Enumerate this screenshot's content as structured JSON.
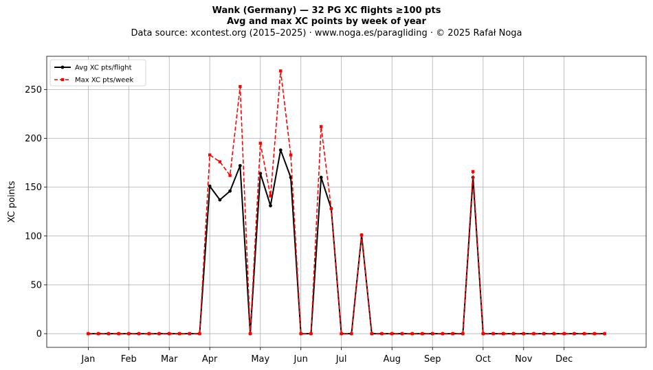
{
  "header": {
    "title": "Wank (Germany)  —  32 PG XC flights ≥100 pts",
    "subtitle": "Avg and max XC points by week of year",
    "source": "Data source: xcontest.org (2015–2025)  ·  www.noga.es/paragliding  ·  © 2025 Rafał Noga"
  },
  "chart_data": {
    "type": "line",
    "title": "Wank (Germany)  —  32 PG XC flights ≥100 pts",
    "subtitle": "Avg and max XC points by week of year",
    "xlabel": "",
    "ylabel": "XC points",
    "x": [
      1,
      2,
      3,
      4,
      5,
      6,
      7,
      8,
      9,
      10,
      11,
      12,
      13,
      14,
      15,
      16,
      17,
      18,
      19,
      20,
      21,
      22,
      23,
      24,
      25,
      26,
      27,
      28,
      29,
      30,
      31,
      32,
      33,
      34,
      35,
      36,
      37,
      38,
      39,
      40,
      41,
      42,
      43,
      44,
      45,
      46,
      47,
      48,
      49,
      50,
      51,
      52
    ],
    "xlim": [
      -3.1,
      56.1
    ],
    "ylim": [
      -14,
      284
    ],
    "xticks": [
      {
        "value": 1,
        "label": "Jan"
      },
      {
        "value": 5,
        "label": "Feb"
      },
      {
        "value": 9,
        "label": "Mar"
      },
      {
        "value": 13,
        "label": "Apr"
      },
      {
        "value": 18,
        "label": "May"
      },
      {
        "value": 22,
        "label": "Jun"
      },
      {
        "value": 26,
        "label": "Jul"
      },
      {
        "value": 31,
        "label": "Aug"
      },
      {
        "value": 35,
        "label": "Sep"
      },
      {
        "value": 40,
        "label": "Oct"
      },
      {
        "value": 44,
        "label": "Nov"
      },
      {
        "value": 48,
        "label": "Dec"
      }
    ],
    "yticks": [
      0,
      50,
      100,
      150,
      200,
      250
    ],
    "grid": true,
    "legend_position": "top-left",
    "series": [
      {
        "name": "Avg XC pts/flight",
        "color": "#000000",
        "line_style": "solid",
        "marker": "circle",
        "values": [
          0,
          0,
          0,
          0,
          0,
          0,
          0,
          0,
          0,
          0,
          0,
          0,
          151,
          137,
          146,
          172,
          0,
          164,
          131,
          188,
          160,
          0,
          0,
          160,
          128,
          0,
          0,
          101,
          0,
          0,
          0,
          0,
          0,
          0,
          0,
          0,
          0,
          0,
          160,
          0,
          0,
          0,
          0,
          0,
          0,
          0,
          0,
          0,
          0,
          0,
          0,
          0
        ]
      },
      {
        "name": "Max XC pts/week",
        "color": "#ff0000",
        "line_style": "dashed",
        "marker": "square",
        "values": [
          0,
          0,
          0,
          0,
          0,
          0,
          0,
          0,
          0,
          0,
          0,
          0,
          183,
          176,
          162,
          253,
          0,
          195,
          141,
          269,
          183,
          0,
          0,
          212,
          128,
          0,
          0,
          101,
          0,
          0,
          0,
          0,
          0,
          0,
          0,
          0,
          0,
          0,
          166,
          0,
          0,
          0,
          0,
          0,
          0,
          0,
          0,
          0,
          0,
          0,
          0,
          0
        ]
      }
    ]
  }
}
